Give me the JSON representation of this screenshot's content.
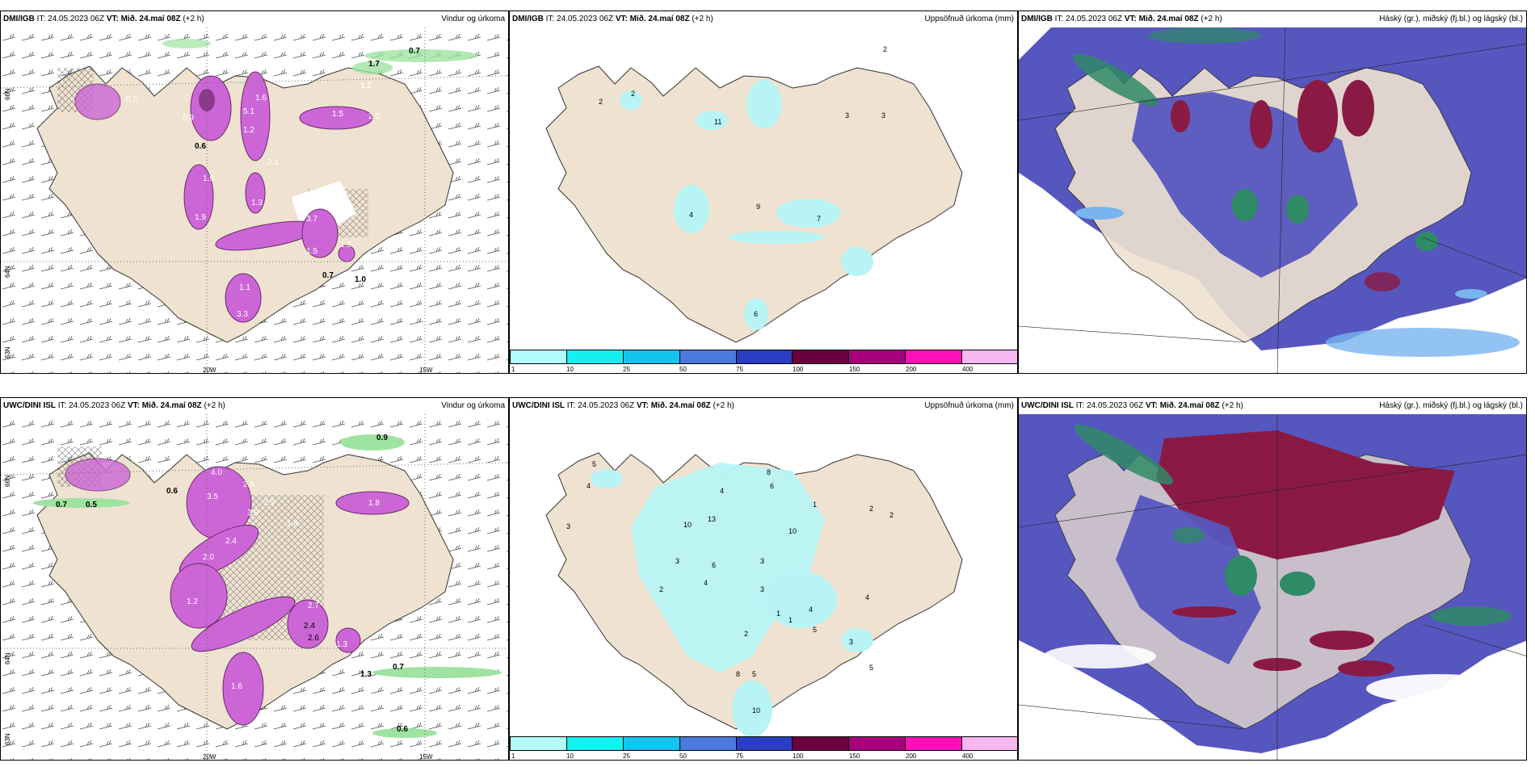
{
  "rows": [
    {
      "model": "DMI/IGB",
      "it_label": "IT:",
      "it_value": "24.05.2023 06Z",
      "vt_label": "VT:",
      "vt_value": "Mið. 24.maí 08Z",
      "lead": "(+2 h)"
    },
    {
      "model": "UWC/DINI ISL",
      "it_label": "IT:",
      "it_value": "24.05.2023 06Z",
      "vt_label": "VT:",
      "vt_value": "Mið. 24.maí 08Z",
      "lead": "(+2 h)"
    }
  ],
  "panel_titles": {
    "wind": "Vindur og úrkoma",
    "accum": "Uppsöfnuð úrkoma (mm)",
    "cloud": "Háský (gr.), miðský (fj.bl.) og lágský (bl.)"
  },
  "axis_labels": {
    "lon_20w": "20W",
    "lon_15w": "15W",
    "lat_66n": "66N",
    "lat_64n": "64N",
    "lat_63n": "63N"
  },
  "colorbar": {
    "colors": [
      "#b3fbfb",
      "#14f0f0",
      "#13c4ef",
      "#4a7ae0",
      "#2a3ec4",
      "#6a0040",
      "#a8007c",
      "#ff10b8",
      "#f7b7f0"
    ],
    "labels": [
      "1",
      "10",
      "25",
      "50",
      "75",
      "100",
      "150",
      "200",
      "400"
    ]
  },
  "wind_labels_top": [
    "0.7",
    "1.7",
    "1.2",
    "0.5",
    "0.9",
    "0.6",
    "1.5",
    "2.0",
    "5.1",
    "1.2",
    "2.1",
    "1.6",
    "1.3",
    "1.9",
    "1.9",
    "1.8",
    "3.7",
    "1.1",
    "1.5",
    "0.7",
    "1.0",
    "3.3"
  ],
  "wind_labels_bottom": [
    "0.9",
    "0.6",
    "1.8",
    "0.7",
    "0.5",
    "0.6",
    "4.0",
    "3.5",
    "2.6",
    "2.9",
    "3.8",
    "2.4",
    "2.0",
    "1.8",
    "2.7",
    "1.2",
    "2.4",
    "2.6",
    "1.3",
    "0.7",
    "1.6",
    "1.3",
    "0.6"
  ],
  "accum_labels_top": [
    "2",
    "2",
    "2",
    "11",
    "3",
    "3",
    "4",
    "9",
    "7",
    "6"
  ],
  "accum_labels_bottom": [
    "5",
    "4",
    "3",
    "8",
    "6",
    "4",
    "10",
    "13",
    "10",
    "1",
    "2",
    "2",
    "3",
    "6",
    "2",
    "3",
    "4",
    "3",
    "4",
    "1",
    "1",
    "2",
    "5",
    "8",
    "5",
    "10",
    "3",
    "4",
    "5"
  ],
  "colors": {
    "land": "#efe2d0",
    "purple_precip": "#cc66d6",
    "green_precip": "#9fe3a0",
    "cyan_accum": "#b8f4f4",
    "blue_cloud": "#5656bf",
    "maroon_cloud": "#8a1a44",
    "green_cloud": "#2f8a66",
    "light_blue": "#78b4f0"
  }
}
